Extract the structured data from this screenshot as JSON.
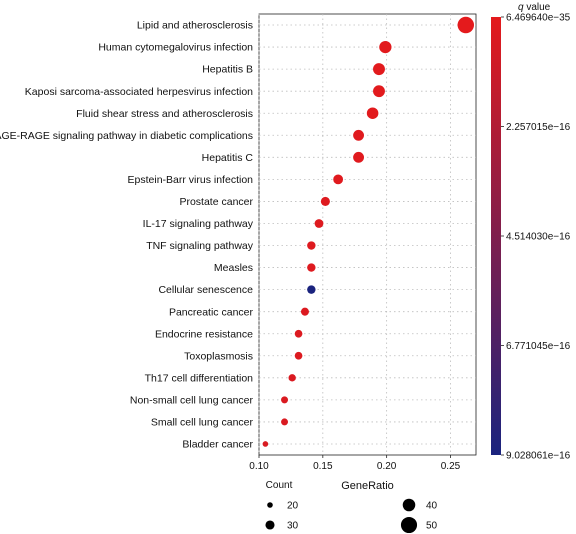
{
  "chart_data": {
    "type": "scatter",
    "xlabel": "GeneRatio",
    "xlim": [
      0.1,
      0.27
    ],
    "xticks": [
      "0.10",
      "0.15",
      "0.20",
      "0.25"
    ],
    "xtick_values": [
      0.1,
      0.15,
      0.2,
      0.25
    ],
    "grid": true,
    "grid_style": "dotted",
    "categories": [
      "Lipid and atherosclerosis",
      "Human cytomegalovirus infection",
      "Hepatitis B",
      "Kaposi sarcoma-associated herpesvirus infection",
      "Fluid shear stress and atherosclerosis",
      "AGE-RAGE signaling pathway in diabetic complications",
      "Hepatitis C",
      "Epstein-Barr virus infection",
      "Prostate cancer",
      "IL-17 signaling pathway",
      "TNF signaling pathway",
      "Measles",
      "Cellular senescence",
      "Pancreatic cancer",
      "Endocrine resistance",
      "Toxoplasmosis",
      "Th17 cell differentiation",
      "Non-small cell lung cancer",
      "Small cell lung cancer",
      "Bladder cancer"
    ],
    "gene_ratio": [
      0.262,
      0.199,
      0.194,
      0.194,
      0.189,
      0.178,
      0.178,
      0.162,
      0.152,
      0.147,
      0.141,
      0.141,
      0.141,
      0.136,
      0.131,
      0.131,
      0.126,
      0.12,
      0.12,
      0.105
    ],
    "count": [
      51,
      39,
      38,
      38,
      37,
      35,
      35,
      32,
      30,
      29,
      28,
      28,
      28,
      27,
      26,
      26,
      25,
      24,
      24,
      20
    ],
    "color_level": [
      0.0,
      0.01,
      0.01,
      0.01,
      0.01,
      0.02,
      0.02,
      0.02,
      0.03,
      0.03,
      0.03,
      0.03,
      1.0,
      0.04,
      0.04,
      0.04,
      0.05,
      0.05,
      0.05,
      0.06
    ],
    "colorbar": {
      "title_italic": "q",
      "title_rest": " value",
      "labels": [
        "6.469640e−35",
        "2.257015e−16",
        "4.514030e−16",
        "6.771045e−16",
        "9.028061e−16"
      ],
      "color_high": "#e41a1c",
      "color_low": "#1a237e"
    },
    "size_legend": {
      "title": "Count",
      "sizes": [
        20,
        30,
        40,
        50
      ],
      "labels": [
        "20",
        "30",
        "40",
        "50"
      ]
    }
  }
}
